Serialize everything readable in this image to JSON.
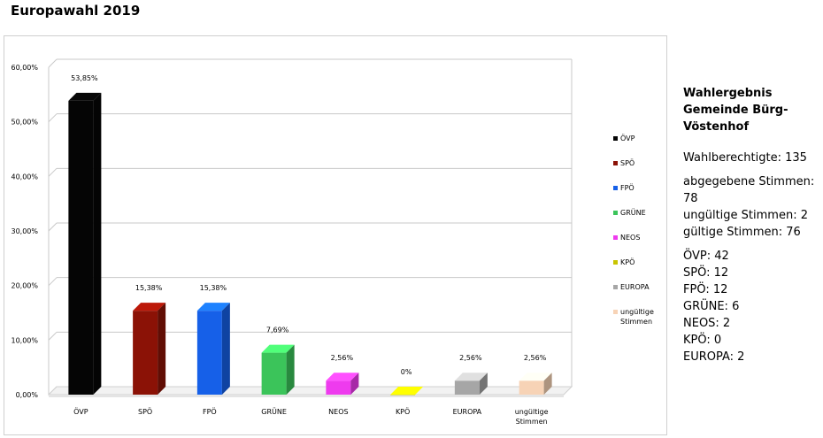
{
  "page": {
    "title": "Europawahl 2019"
  },
  "panel": {
    "title": "Wahlergebnis Gemeinde Bürg-Vöstenhof",
    "eligible": "Wahlberechtigte: 135",
    "cast": "abgegebene Stimmen: 78",
    "invalid": "ungültige Stimmen: 2",
    "valid": "gültige Stimmen: 76",
    "party_votes": [
      "ÖVP: 42",
      "SPÖ: 12",
      "FPÖ: 12",
      "GRÜNE: 6",
      "NEOS: 2",
      "KPÖ: 0",
      "EUROPA: 2"
    ]
  },
  "chart_data": {
    "type": "bar",
    "title": "",
    "xlabel": "",
    "ylabel": "",
    "ylim": [
      0,
      60
    ],
    "y_ticks": [
      "0,00%",
      "10,00%",
      "20,00%",
      "30,00%",
      "40,00%",
      "50,00%",
      "60,00%"
    ],
    "grid": true,
    "legend_position": "right",
    "categories": [
      "ÖVP",
      "SPÖ",
      "FPÖ",
      "GRÜNE",
      "NEOS",
      "KPÖ",
      "EUROPA",
      "ungültige Stimmen"
    ],
    "values": [
      53.85,
      15.38,
      15.38,
      7.69,
      2.56,
      0,
      2.56,
      2.56
    ],
    "data_labels": [
      "53,85%",
      "15,38%",
      "15,38%",
      "7,69%",
      "2,56%",
      "0%",
      "2,56%",
      "2,56%"
    ],
    "colors": [
      "#050505",
      "#8b1206",
      "#1660e8",
      "#3bc45a",
      "#ee3bee",
      "#c8c400",
      "#a6a6a6",
      "#f7d3b6"
    ],
    "legend": [
      "ÖVP",
      "SPÖ",
      "FPÖ",
      "GRÜNE",
      "NEOS",
      "KPÖ",
      "EUROPA",
      "ungültige Stimmen"
    ]
  }
}
